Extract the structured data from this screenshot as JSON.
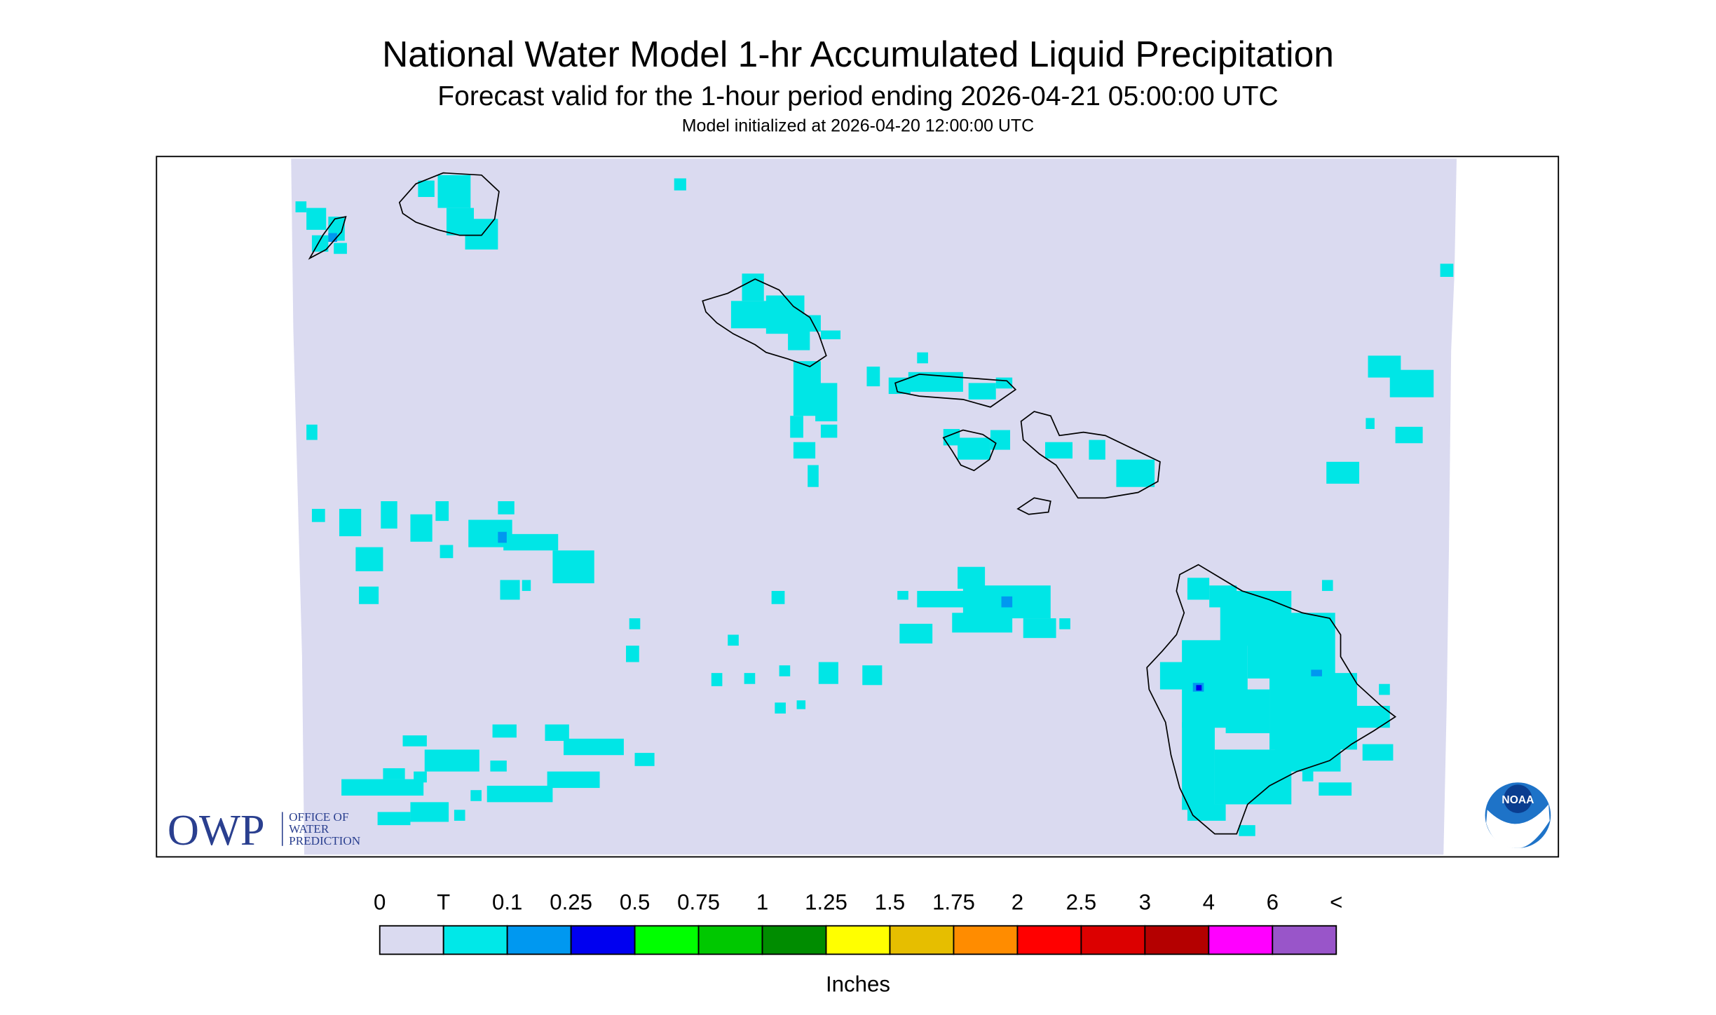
{
  "header": {
    "title": "National Water Model 1-hr Accumulated Liquid Precipitation",
    "subtitle": "Forecast valid for the 1-hour period ending 2026-04-21 05:00:00 UTC",
    "init": "Model initialized at 2026-04-20 12:00:00 UTC"
  },
  "logos": {
    "owp": "OWP",
    "owp_lines": [
      "OFFICE OF",
      "WATER",
      "PREDICTION"
    ],
    "noaa": "NOAA"
  },
  "legend": {
    "labels": [
      "0",
      "T",
      "0.1",
      "0.25",
      "0.5",
      "0.75",
      "1",
      "1.25",
      "1.5",
      "1.75",
      "2",
      "2.5",
      "3",
      "4",
      "6",
      "<"
    ],
    "colors": [
      "#dadaf0",
      "#00e8e8",
      "#0098f0",
      "#0000f0",
      "#00ff00",
      "#00c800",
      "#008c00",
      "#ffff00",
      "#e6be00",
      "#ff8c00",
      "#ff0000",
      "#dc0000",
      "#b40000",
      "#ff00ff",
      "#9955c9"
    ],
    "unit": "Inches"
  }
}
